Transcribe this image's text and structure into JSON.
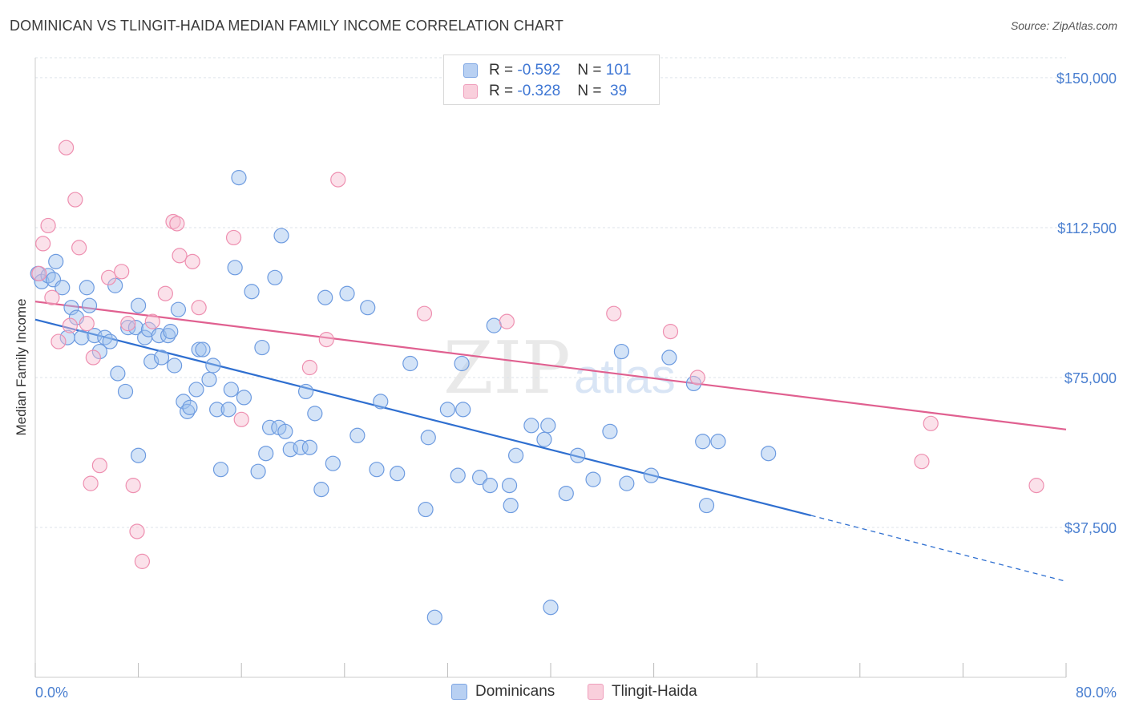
{
  "header": {
    "title": "DOMINICAN VS TLINGIT-HAIDA MEDIAN FAMILY INCOME CORRELATION CHART",
    "source": "Source: ZipAtlas.com"
  },
  "legend": {
    "rows": [
      {
        "r_label": "R = ",
        "r_value": "-0.592",
        "n_label": "N = ",
        "n_value": "101"
      },
      {
        "r_label": "R = ",
        "r_value": "-0.328",
        "n_label": "N = ",
        "n_value": " 39"
      }
    ]
  },
  "watermark": {
    "zip": "ZIP",
    "atlas": "atlas"
  },
  "colors": {
    "dominicans_fill": "#9ec0ee",
    "dominicans_stroke": "#6d9be0",
    "dominicans_line": "#2f6fd0",
    "tlingit_fill": "#f6bdd0",
    "tlingit_stroke": "#ee8fb0",
    "tlingit_line": "#e06090",
    "grid": "#dde3ea",
    "axis_text": "#4a7fd0"
  },
  "chart_data": {
    "type": "scatter",
    "title": "DOMINICAN VS TLINGIT-HAIDA MEDIAN FAMILY INCOME CORRELATION CHART",
    "xlabel": "",
    "ylabel": "Median Family Income",
    "xlim": [
      0,
      80
    ],
    "ylim": [
      0,
      155000
    ],
    "x_tick_labels": [
      "0.0%",
      "80.0%"
    ],
    "y_ticks": [
      37500,
      75000,
      112500,
      150000
    ],
    "y_tick_labels": [
      "$37,500",
      "$75,000",
      "$112,500",
      "$150,000"
    ],
    "grid": true,
    "legend_position": "bottom",
    "series": [
      {
        "name": "Dominicans",
        "r": -0.592,
        "n": 101,
        "trend": {
          "x": [
            0,
            60.2
          ],
          "y": [
            89500,
            40500
          ],
          "dashed_x": [
            60.2,
            80
          ],
          "dashed_y": [
            40500,
            24000
          ]
        },
        "points": [
          [
            0.2,
            101000
          ],
          [
            0.5,
            99000
          ],
          [
            1.0,
            100500
          ],
          [
            1.4,
            99500
          ],
          [
            1.6,
            104000
          ],
          [
            2.1,
            97500
          ],
          [
            2.5,
            85000
          ],
          [
            2.8,
            92500
          ],
          [
            3.2,
            90000
          ],
          [
            3.6,
            85000
          ],
          [
            4.0,
            97500
          ],
          [
            4.2,
            93000
          ],
          [
            4.6,
            85500
          ],
          [
            5.0,
            81500
          ],
          [
            5.4,
            85000
          ],
          [
            5.8,
            84000
          ],
          [
            6.2,
            98000
          ],
          [
            6.4,
            76000
          ],
          [
            7.0,
            71500
          ],
          [
            7.2,
            87500
          ],
          [
            7.8,
            87500
          ],
          [
            8.0,
            93000
          ],
          [
            8.0,
            55500
          ],
          [
            8.5,
            85000
          ],
          [
            8.8,
            87000
          ],
          [
            9.0,
            79000
          ],
          [
            9.6,
            85500
          ],
          [
            9.8,
            80000
          ],
          [
            10.3,
            85500
          ],
          [
            10.5,
            86500
          ],
          [
            10.8,
            78000
          ],
          [
            11.1,
            92000
          ],
          [
            11.5,
            69000
          ],
          [
            11.8,
            66500
          ],
          [
            12.0,
            67500
          ],
          [
            12.5,
            72000
          ],
          [
            12.7,
            82000
          ],
          [
            13.0,
            82000
          ],
          [
            13.5,
            74500
          ],
          [
            13.8,
            78000
          ],
          [
            14.1,
            67000
          ],
          [
            14.4,
            52000
          ],
          [
            15.0,
            67000
          ],
          [
            15.2,
            72000
          ],
          [
            15.5,
            102500
          ],
          [
            15.8,
            125000
          ],
          [
            16.2,
            70000
          ],
          [
            16.8,
            96500
          ],
          [
            17.3,
            51500
          ],
          [
            17.6,
            82500
          ],
          [
            17.9,
            56000
          ],
          [
            18.2,
            62500
          ],
          [
            18.6,
            100000
          ],
          [
            18.9,
            62500
          ],
          [
            19.1,
            110500
          ],
          [
            19.4,
            61500
          ],
          [
            19.8,
            57000
          ],
          [
            20.6,
            57500
          ],
          [
            21.0,
            71500
          ],
          [
            21.3,
            57500
          ],
          [
            21.7,
            66000
          ],
          [
            22.2,
            47000
          ],
          [
            22.5,
            95000
          ],
          [
            23.1,
            53500
          ],
          [
            24.2,
            96000
          ],
          [
            25.0,
            60500
          ],
          [
            25.8,
            92500
          ],
          [
            26.5,
            52000
          ],
          [
            26.8,
            69000
          ],
          [
            28.1,
            51000
          ],
          [
            29.1,
            78500
          ],
          [
            30.3,
            42000
          ],
          [
            30.5,
            60000
          ],
          [
            31.0,
            15000
          ],
          [
            32.0,
            67000
          ],
          [
            32.8,
            50500
          ],
          [
            33.1,
            78500
          ],
          [
            33.2,
            67000
          ],
          [
            34.5,
            50000
          ],
          [
            35.3,
            48000
          ],
          [
            35.6,
            88000
          ],
          [
            36.8,
            48000
          ],
          [
            36.9,
            43000
          ],
          [
            37.3,
            55500
          ],
          [
            38.5,
            63000
          ],
          [
            39.5,
            59500
          ],
          [
            39.8,
            63000
          ],
          [
            40.0,
            17500
          ],
          [
            41.2,
            46000
          ],
          [
            42.1,
            55500
          ],
          [
            43.3,
            49500
          ],
          [
            44.6,
            61500
          ],
          [
            45.5,
            81500
          ],
          [
            45.9,
            48500
          ],
          [
            47.8,
            50500
          ],
          [
            49.2,
            80000
          ],
          [
            51.1,
            73500
          ],
          [
            51.8,
            59000
          ],
          [
            52.1,
            43000
          ],
          [
            53.0,
            59000
          ],
          [
            56.9,
            56000
          ]
        ]
      },
      {
        "name": "Tlingit-Haida",
        "r": -0.328,
        "n": 39,
        "trend": {
          "x": [
            0,
            80
          ],
          "y": [
            94000,
            62000
          ]
        },
        "points": [
          [
            0.3,
            101000
          ],
          [
            0.6,
            108500
          ],
          [
            1.0,
            113000
          ],
          [
            1.3,
            95000
          ],
          [
            1.8,
            84000
          ],
          [
            2.4,
            132500
          ],
          [
            2.7,
            88000
          ],
          [
            3.1,
            119500
          ],
          [
            3.4,
            107500
          ],
          [
            4.0,
            88500
          ],
          [
            4.5,
            80000
          ],
          [
            5.0,
            53000
          ],
          [
            4.3,
            48500
          ],
          [
            5.7,
            100000
          ],
          [
            6.7,
            101500
          ],
          [
            7.2,
            88500
          ],
          [
            7.6,
            48000
          ],
          [
            7.9,
            36500
          ],
          [
            8.3,
            29000
          ],
          [
            9.1,
            89000
          ],
          [
            10.1,
            96000
          ],
          [
            10.7,
            114000
          ],
          [
            11.0,
            113500
          ],
          [
            11.2,
            105500
          ],
          [
            12.2,
            104000
          ],
          [
            12.7,
            92500
          ],
          [
            15.4,
            110000
          ],
          [
            16.0,
            64500
          ],
          [
            21.3,
            77500
          ],
          [
            22.6,
            84500
          ],
          [
            23.5,
            124500
          ],
          [
            30.2,
            91000
          ],
          [
            36.6,
            89000
          ],
          [
            44.9,
            91000
          ],
          [
            49.3,
            86500
          ],
          [
            51.4,
            75000
          ],
          [
            68.8,
            54000
          ],
          [
            69.5,
            63500
          ],
          [
            77.7,
            48000
          ]
        ]
      }
    ]
  }
}
